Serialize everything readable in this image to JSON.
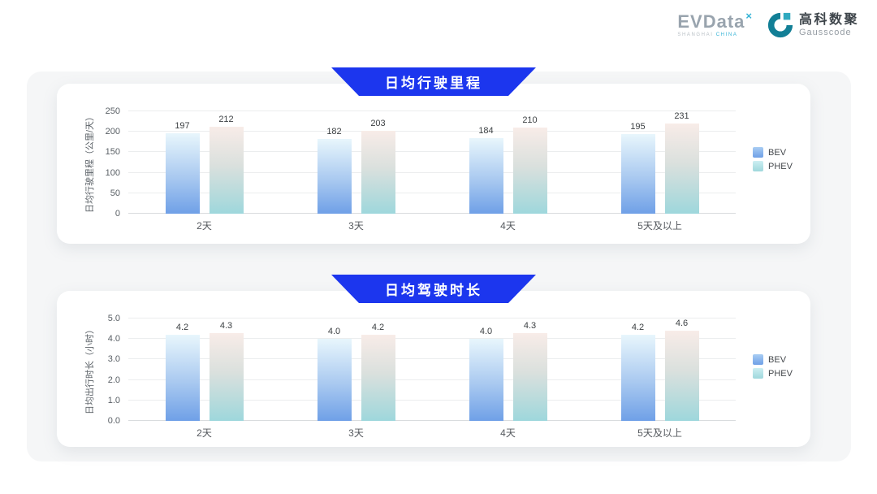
{
  "header": {
    "evdata": {
      "brand": "EVData",
      "superscript": "×",
      "subtext_left": "SHANGHAI ",
      "subtext_right": "CHINA"
    },
    "gausscode": {
      "cn": "高科数聚",
      "en": "Gausscode"
    }
  },
  "colors": {
    "banner_blue": "#1c36ee",
    "panel_bg": "#f5f6f7",
    "bev_gradient_top": "#e8f6fc",
    "bev_gradient_bottom": "#6fa0e7",
    "phev_gradient_top": "#f8ece8",
    "phev_gradient_bottom": "#9ed7dc",
    "gausscode_teal": "#127f96"
  },
  "chart_data": [
    {
      "type": "bar",
      "title": "日均行驶里程",
      "ylabel": "日均行驶里程（公里/天）",
      "xlabel": "",
      "categories": [
        "2天",
        "3天",
        "4天",
        "5天及以上"
      ],
      "series": [
        {
          "name": "BEV",
          "values": [
            197,
            182,
            184,
            195
          ],
          "labels": [
            "197",
            "182",
            "184",
            "195"
          ]
        },
        {
          "name": "PHEV",
          "values": [
            212,
            203,
            210,
            231
          ],
          "labels": [
            "212",
            "203",
            "210",
            "231"
          ]
        }
      ],
      "ylim": [
        0,
        250
      ],
      "yticks": [
        "0",
        "50",
        "100",
        "150",
        "200",
        "250"
      ],
      "grid": true,
      "legend_position": "right"
    },
    {
      "type": "bar",
      "title": "日均驾驶时长",
      "ylabel": "日均出行时长（小时）",
      "xlabel": "",
      "categories": [
        "2天",
        "3天",
        "4天",
        "5天及以上"
      ],
      "series": [
        {
          "name": "BEV",
          "values": [
            4.2,
            4.0,
            4.0,
            4.2
          ],
          "labels": [
            "4.2",
            "4.0",
            "4.0",
            "4.2"
          ]
        },
        {
          "name": "PHEV",
          "values": [
            4.3,
            4.2,
            4.3,
            4.6
          ],
          "labels": [
            "4.3",
            "4.2",
            "4.3",
            "4.6"
          ]
        }
      ],
      "ylim": [
        0,
        5
      ],
      "yticks": [
        "0.0",
        "1.0",
        "2.0",
        "3.0",
        "4.0",
        "5.0"
      ],
      "grid": true,
      "legend_position": "right"
    }
  ]
}
